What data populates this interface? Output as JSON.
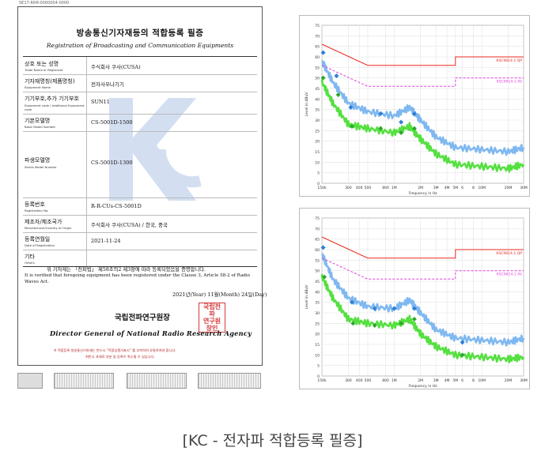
{
  "certificate": {
    "doc_code": "SE17-RRR-0000004-0000",
    "title_ko": "방송통신기자재등의 적합등록 필증",
    "title_en": "Registration of Broadcasting and Communication Equipments",
    "rows": [
      {
        "label_ko": "상호 또는 성명",
        "label_en": "Trade Name or Registrant",
        "value": "주식회사 쿠사(CUSA)"
      },
      {
        "label_ko": "기자재명칭(제품명칭)",
        "label_en": "Equipment Name",
        "value": "전자사우나기기"
      },
      {
        "label_ko": "기기부호,추가 기기부호",
        "label_en": "Equipment code / Additional Equipment code",
        "value": "SUN11"
      },
      {
        "label_ko": "기본모델명",
        "label_en": "Basic Model Number",
        "value": "CS-5001D-1500"
      },
      {
        "label_ko": "파생모델명",
        "label_en": "Series Model Number",
        "value": "CS-5001D-1300"
      },
      {
        "label_ko": "등록번호",
        "label_en": "Registration No.",
        "value": "R-R-CUs-CS-5001D"
      },
      {
        "label_ko": "제조자/제조국가",
        "label_en": "Manufacturer/Country of Origin",
        "value": "주식회사 쿠사(CUSA) / 한국, 중국"
      },
      {
        "label_ko": "등록연월일",
        "label_en": "Date of Registration",
        "value": "2021-11-24"
      },
      {
        "label_ko": "기타",
        "label_en": "Others",
        "value": ""
      }
    ],
    "statement_ko": "위 기자재는 「전파법」 제58조의2 제3항에 따라 등록되었음을 증명합니다.",
    "statement_en": "It is verified that foregoing equipment has been registered under the Clause 3, Article 58-2 of Radio Waves Act.",
    "date_line": "2021년(Year) 11월(Month) 24일(Day)",
    "agency_ko": "국립전파연구원장",
    "agency_en": "Director General of National Radio Research Agency",
    "seal_text": "국립전파연구원장인",
    "note1": "※ 적합등록 방송통신기자재는 반드시 “적합성평가표시” 를 부착하여 유통하여야 합니다.",
    "note2": "위반시 과태료 처분 및 등록이 취소될 수 있습니다.",
    "kc_mark": "KC"
  },
  "chart_data": [
    {
      "type": "line",
      "ylabel": "Level in dBuV",
      "xlabel": "Frequency in Hz",
      "x_scale": "log",
      "xlim": [
        150000,
        30000000
      ],
      "ylim": [
        0,
        75
      ],
      "x_ticks": [
        "150k",
        "300",
        "400",
        "500",
        "800",
        "1M",
        "2M",
        "3M",
        "4M",
        "5M",
        "6",
        "8",
        "10M",
        "20M",
        "30M"
      ],
      "y_ticks": [
        0,
        5,
        10,
        15,
        20,
        25,
        30,
        35,
        40,
        45,
        50,
        55,
        60,
        65,
        70,
        75
      ],
      "limit_labels": [
        "KSC9814-1 QP",
        "KSC9814-1 AV"
      ],
      "limits": [
        {
          "name": "KSC9814-1 QP",
          "color": "#e8281e",
          "points": [
            [
              150000,
              66
            ],
            [
              500000,
              56
            ],
            [
              5000000,
              56
            ],
            [
              5000000,
              60
            ],
            [
              30000000,
              60
            ]
          ]
        },
        {
          "name": "KSC9814-1 AV",
          "color": "#e040e0",
          "points": [
            [
              150000,
              56
            ],
            [
              500000,
              46
            ],
            [
              5000000,
              46
            ],
            [
              5000000,
              50
            ],
            [
              30000000,
              50
            ]
          ]
        }
      ],
      "series": [
        {
          "color": "#7fb8f0",
          "points": [
            [
              150000,
              58
            ],
            [
              200000,
              48
            ],
            [
              300000,
              38
            ],
            [
              500000,
              34
            ],
            [
              1000000,
              32
            ],
            [
              1500000,
              36
            ],
            [
              2000000,
              30
            ],
            [
              3000000,
              22
            ],
            [
              5000000,
              17
            ],
            [
              10000000,
              16
            ],
            [
              20000000,
              15
            ],
            [
              30000000,
              17
            ]
          ]
        },
        {
          "color": "#55e040",
          "points": [
            [
              150000,
              48
            ],
            [
              200000,
              38
            ],
            [
              300000,
              28
            ],
            [
              500000,
              26
            ],
            [
              1000000,
              24
            ],
            [
              1500000,
              27
            ],
            [
              2000000,
              21
            ],
            [
              3000000,
              14
            ],
            [
              5000000,
              9
            ],
            [
              10000000,
              8
            ],
            [
              20000000,
              7
            ],
            [
              30000000,
              9
            ]
          ]
        }
      ],
      "markers_qp": [
        [
          155000,
          62
        ],
        [
          220000,
          51
        ],
        [
          320000,
          36
        ],
        [
          700000,
          33
        ],
        [
          1200000,
          29
        ],
        [
          1700000,
          33
        ]
      ],
      "markers_av": [
        [
          155000,
          50
        ],
        [
          230000,
          42
        ],
        [
          330000,
          27
        ],
        [
          700000,
          26
        ],
        [
          1200000,
          24
        ],
        [
          1700000,
          26
        ]
      ]
    },
    {
      "type": "line",
      "ylabel": "Level in dBuV",
      "xlabel": "Frequency in Hz",
      "x_scale": "log",
      "xlim": [
        150000,
        30000000
      ],
      "ylim": [
        0,
        75
      ],
      "x_ticks": [
        "150k",
        "300",
        "400",
        "500",
        "800",
        "1M",
        "2M",
        "3M",
        "4M",
        "5M",
        "6",
        "8",
        "10M",
        "20M",
        "30M"
      ],
      "y_ticks": [
        0,
        5,
        10,
        15,
        20,
        25,
        30,
        35,
        40,
        45,
        50,
        55,
        60,
        65,
        70,
        75
      ],
      "limit_labels": [
        "KSC9814-1 QP",
        "KSC9814-1 AV"
      ],
      "limits": [
        {
          "name": "KSC9814-1 QP",
          "color": "#e8281e",
          "points": [
            [
              150000,
              66
            ],
            [
              500000,
              56
            ],
            [
              5000000,
              56
            ],
            [
              5000000,
              60
            ],
            [
              30000000,
              60
            ]
          ]
        },
        {
          "name": "KSC9814-1 AV",
          "color": "#e040e0",
          "points": [
            [
              150000,
              56
            ],
            [
              500000,
              46
            ],
            [
              5000000,
              46
            ],
            [
              5000000,
              50
            ],
            [
              30000000,
              50
            ]
          ]
        }
      ],
      "series": [
        {
          "color": "#7fb8f0",
          "points": [
            [
              150000,
              58
            ],
            [
              200000,
              46
            ],
            [
              300000,
              37
            ],
            [
              500000,
              33
            ],
            [
              1000000,
              32
            ],
            [
              1500000,
              36
            ],
            [
              2000000,
              30
            ],
            [
              3000000,
              22
            ],
            [
              5000000,
              18
            ],
            [
              10000000,
              17
            ],
            [
              20000000,
              16
            ],
            [
              30000000,
              18
            ]
          ]
        },
        {
          "color": "#55e040",
          "points": [
            [
              150000,
              47
            ],
            [
              200000,
              37
            ],
            [
              300000,
              27
            ],
            [
              500000,
              25
            ],
            [
              1000000,
              24
            ],
            [
              1500000,
              27
            ],
            [
              2000000,
              20
            ],
            [
              3000000,
              14
            ],
            [
              5000000,
              10
            ],
            [
              10000000,
              9
            ],
            [
              20000000,
              8
            ],
            [
              30000000,
              9
            ]
          ]
        }
      ],
      "markers_qp": [
        [
          155000,
          61
        ],
        [
          330000,
          35
        ],
        [
          600000,
          32
        ],
        [
          1000000,
          32
        ],
        [
          1700000,
          32
        ],
        [
          6000000,
          16
        ]
      ],
      "markers_av": [
        [
          160000,
          47
        ],
        [
          340000,
          25
        ],
        [
          600000,
          24
        ],
        [
          1200000,
          25
        ],
        [
          1700000,
          27
        ],
        [
          6000000,
          10
        ]
      ]
    }
  ],
  "caption": "[KC - 전자파 적합등록 필증]"
}
